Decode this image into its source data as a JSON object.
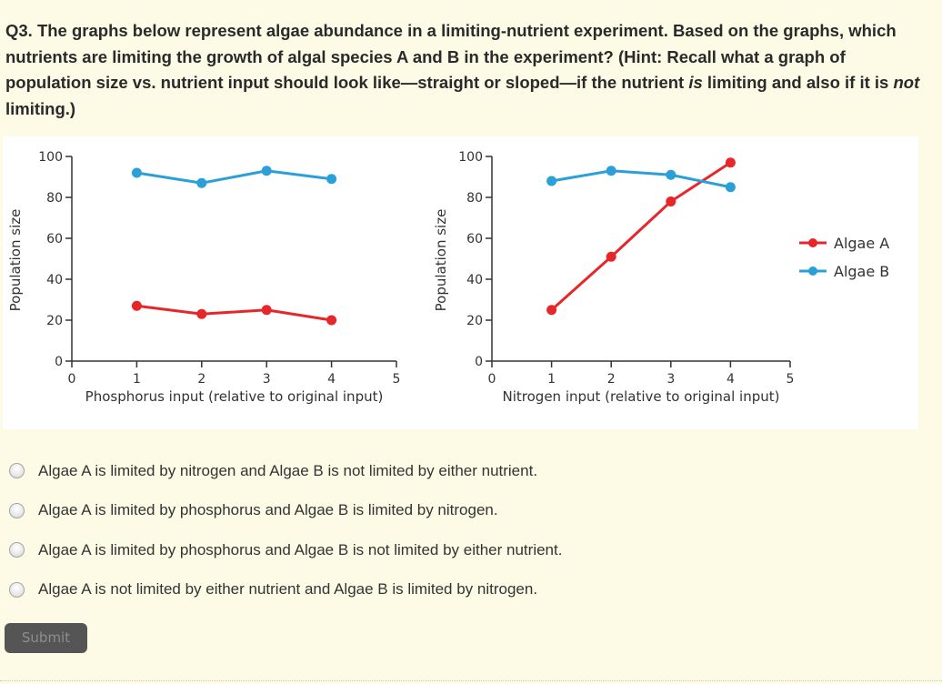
{
  "question": {
    "part1": "Q3. The graphs below represent algae abundance in a limiting-nutrient experiment. Based on the graphs, which nutrients are limiting the growth of algal species A and B in the experiment? (Hint: Recall what a graph of population size vs. nutrient input should look like—straight or sloped—if the nutrient ",
    "em1": "is",
    "part2": " limiting and also if it is ",
    "em2": "not",
    "part3": " limiting.)"
  },
  "chart_data": [
    {
      "type": "line",
      "xlabel": "Phosphorus input (relative to original input)",
      "ylabel": "Population size",
      "xlim": [
        0,
        5
      ],
      "ylim": [
        0,
        100
      ],
      "xticks": [
        "0",
        "1",
        "2",
        "3",
        "4",
        "5"
      ],
      "yticks": [
        "0",
        "20",
        "40",
        "60",
        "80",
        "100"
      ],
      "series": [
        {
          "name": "Algae A",
          "color": "#e8262a",
          "x": [
            1,
            2,
            3,
            4
          ],
          "y": [
            27,
            23,
            25,
            20
          ]
        },
        {
          "name": "Algae B",
          "color": "#2a9fd8",
          "x": [
            1,
            2,
            3,
            4
          ],
          "y": [
            92,
            87,
            93,
            89
          ]
        }
      ]
    },
    {
      "type": "line",
      "xlabel": "Nitrogen input (relative to original input)",
      "ylabel": "Population size",
      "xlim": [
        0,
        5
      ],
      "ylim": [
        0,
        100
      ],
      "xticks": [
        "0",
        "1",
        "2",
        "3",
        "4",
        "5"
      ],
      "yticks": [
        "0",
        "20",
        "40",
        "60",
        "80",
        "100"
      ],
      "legend": "right",
      "series": [
        {
          "name": "Algae A",
          "color": "#e8262a",
          "x": [
            1,
            2,
            3,
            4
          ],
          "y": [
            25,
            51,
            78,
            97
          ]
        },
        {
          "name": "Algae B",
          "color": "#2a9fd8",
          "x": [
            1,
            2,
            3,
            4
          ],
          "y": [
            88,
            93,
            91,
            85
          ]
        }
      ]
    }
  ],
  "choices": [
    "Algae A is limited by nitrogen and Algae B is not limited by either nutrient.",
    "Algae A is limited by phosphorus and Algae B is limited by nitrogen.",
    "Algae A is limited by phosphorus and Algae B is not limited by either nutrient.",
    "Algae A is not limited by either nutrient and Algae B is limited by nitrogen."
  ],
  "submit_label": "Submit"
}
